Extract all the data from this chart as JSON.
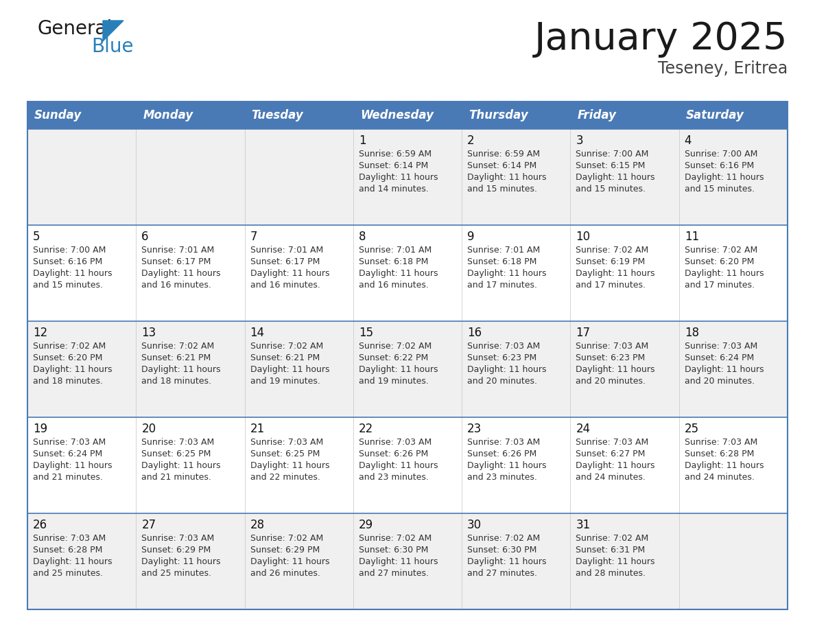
{
  "title": "January 2025",
  "subtitle": "Teseney, Eritrea",
  "days_of_week": [
    "Sunday",
    "Monday",
    "Tuesday",
    "Wednesday",
    "Thursday",
    "Friday",
    "Saturday"
  ],
  "header_bg": "#4a7ab5",
  "header_text": "#ffffff",
  "row_bg_odd": "#f0f0f0",
  "row_bg_even": "#ffffff",
  "cell_text_color": "#333333",
  "day_number_color": "#111111",
  "border_color": "#4a7ab5",
  "row_sep_color": "#4a7ab5",
  "title_color": "#1a1a1a",
  "subtitle_color": "#444444",
  "logo_color_general": "#1a1a1a",
  "logo_color_blue": "#2980b9",
  "logo_triangle_color": "#2980b9",
  "calendar": [
    [
      {
        "day": null,
        "sunrise": null,
        "sunset": null,
        "daylight_line1": null,
        "daylight_line2": null
      },
      {
        "day": null,
        "sunrise": null,
        "sunset": null,
        "daylight_line1": null,
        "daylight_line2": null
      },
      {
        "day": null,
        "sunrise": null,
        "sunset": null,
        "daylight_line1": null,
        "daylight_line2": null
      },
      {
        "day": "1",
        "sunrise": "6:59 AM",
        "sunset": "6:14 PM",
        "daylight_line1": "11 hours",
        "daylight_line2": "and 14 minutes."
      },
      {
        "day": "2",
        "sunrise": "6:59 AM",
        "sunset": "6:14 PM",
        "daylight_line1": "11 hours",
        "daylight_line2": "and 15 minutes."
      },
      {
        "day": "3",
        "sunrise": "7:00 AM",
        "sunset": "6:15 PM",
        "daylight_line1": "11 hours",
        "daylight_line2": "and 15 minutes."
      },
      {
        "day": "4",
        "sunrise": "7:00 AM",
        "sunset": "6:16 PM",
        "daylight_line1": "11 hours",
        "daylight_line2": "and 15 minutes."
      }
    ],
    [
      {
        "day": "5",
        "sunrise": "7:00 AM",
        "sunset": "6:16 PM",
        "daylight_line1": "11 hours",
        "daylight_line2": "and 15 minutes."
      },
      {
        "day": "6",
        "sunrise": "7:01 AM",
        "sunset": "6:17 PM",
        "daylight_line1": "11 hours",
        "daylight_line2": "and 16 minutes."
      },
      {
        "day": "7",
        "sunrise": "7:01 AM",
        "sunset": "6:17 PM",
        "daylight_line1": "11 hours",
        "daylight_line2": "and 16 minutes."
      },
      {
        "day": "8",
        "sunrise": "7:01 AM",
        "sunset": "6:18 PM",
        "daylight_line1": "11 hours",
        "daylight_line2": "and 16 minutes."
      },
      {
        "day": "9",
        "sunrise": "7:01 AM",
        "sunset": "6:18 PM",
        "daylight_line1": "11 hours",
        "daylight_line2": "and 17 minutes."
      },
      {
        "day": "10",
        "sunrise": "7:02 AM",
        "sunset": "6:19 PM",
        "daylight_line1": "11 hours",
        "daylight_line2": "and 17 minutes."
      },
      {
        "day": "11",
        "sunrise": "7:02 AM",
        "sunset": "6:20 PM",
        "daylight_line1": "11 hours",
        "daylight_line2": "and 17 minutes."
      }
    ],
    [
      {
        "day": "12",
        "sunrise": "7:02 AM",
        "sunset": "6:20 PM",
        "daylight_line1": "11 hours",
        "daylight_line2": "and 18 minutes."
      },
      {
        "day": "13",
        "sunrise": "7:02 AM",
        "sunset": "6:21 PM",
        "daylight_line1": "11 hours",
        "daylight_line2": "and 18 minutes."
      },
      {
        "day": "14",
        "sunrise": "7:02 AM",
        "sunset": "6:21 PM",
        "daylight_line1": "11 hours",
        "daylight_line2": "and 19 minutes."
      },
      {
        "day": "15",
        "sunrise": "7:02 AM",
        "sunset": "6:22 PM",
        "daylight_line1": "11 hours",
        "daylight_line2": "and 19 minutes."
      },
      {
        "day": "16",
        "sunrise": "7:03 AM",
        "sunset": "6:23 PM",
        "daylight_line1": "11 hours",
        "daylight_line2": "and 20 minutes."
      },
      {
        "day": "17",
        "sunrise": "7:03 AM",
        "sunset": "6:23 PM",
        "daylight_line1": "11 hours",
        "daylight_line2": "and 20 minutes."
      },
      {
        "day": "18",
        "sunrise": "7:03 AM",
        "sunset": "6:24 PM",
        "daylight_line1": "11 hours",
        "daylight_line2": "and 20 minutes."
      }
    ],
    [
      {
        "day": "19",
        "sunrise": "7:03 AM",
        "sunset": "6:24 PM",
        "daylight_line1": "11 hours",
        "daylight_line2": "and 21 minutes."
      },
      {
        "day": "20",
        "sunrise": "7:03 AM",
        "sunset": "6:25 PM",
        "daylight_line1": "11 hours",
        "daylight_line2": "and 21 minutes."
      },
      {
        "day": "21",
        "sunrise": "7:03 AM",
        "sunset": "6:25 PM",
        "daylight_line1": "11 hours",
        "daylight_line2": "and 22 minutes."
      },
      {
        "day": "22",
        "sunrise": "7:03 AM",
        "sunset": "6:26 PM",
        "daylight_line1": "11 hours",
        "daylight_line2": "and 23 minutes."
      },
      {
        "day": "23",
        "sunrise": "7:03 AM",
        "sunset": "6:26 PM",
        "daylight_line1": "11 hours",
        "daylight_line2": "and 23 minutes."
      },
      {
        "day": "24",
        "sunrise": "7:03 AM",
        "sunset": "6:27 PM",
        "daylight_line1": "11 hours",
        "daylight_line2": "and 24 minutes."
      },
      {
        "day": "25",
        "sunrise": "7:03 AM",
        "sunset": "6:28 PM",
        "daylight_line1": "11 hours",
        "daylight_line2": "and 24 minutes."
      }
    ],
    [
      {
        "day": "26",
        "sunrise": "7:03 AM",
        "sunset": "6:28 PM",
        "daylight_line1": "11 hours",
        "daylight_line2": "and 25 minutes."
      },
      {
        "day": "27",
        "sunrise": "7:03 AM",
        "sunset": "6:29 PM",
        "daylight_line1": "11 hours",
        "daylight_line2": "and 25 minutes."
      },
      {
        "day": "28",
        "sunrise": "7:02 AM",
        "sunset": "6:29 PM",
        "daylight_line1": "11 hours",
        "daylight_line2": "and 26 minutes."
      },
      {
        "day": "29",
        "sunrise": "7:02 AM",
        "sunset": "6:30 PM",
        "daylight_line1": "11 hours",
        "daylight_line2": "and 27 minutes."
      },
      {
        "day": "30",
        "sunrise": "7:02 AM",
        "sunset": "6:30 PM",
        "daylight_line1": "11 hours",
        "daylight_line2": "and 27 minutes."
      },
      {
        "day": "31",
        "sunrise": "7:02 AM",
        "sunset": "6:31 PM",
        "daylight_line1": "11 hours",
        "daylight_line2": "and 28 minutes."
      },
      {
        "day": null,
        "sunrise": null,
        "sunset": null,
        "daylight_line1": null,
        "daylight_line2": null
      }
    ]
  ]
}
